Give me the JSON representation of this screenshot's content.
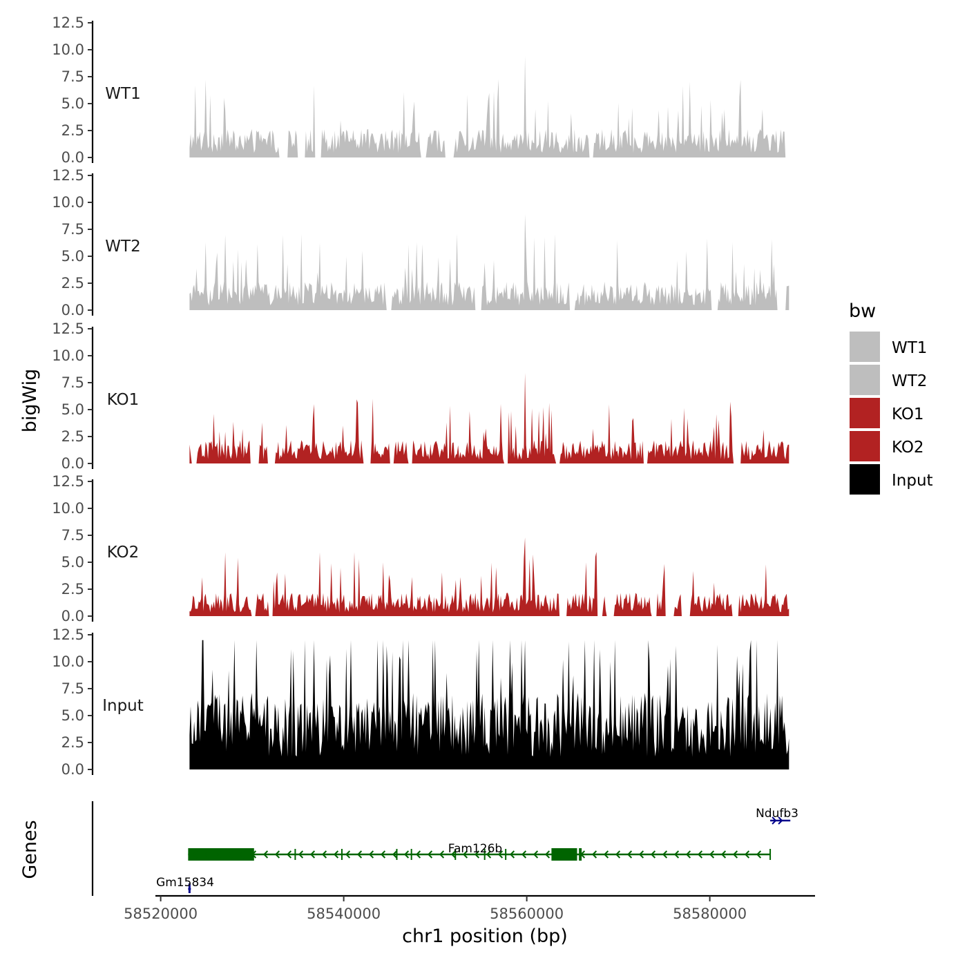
{
  "chart_data": {
    "type": "area",
    "ylabel": "bigWig",
    "xlabel": "chr1 position (bp)",
    "genes_label": "Genes",
    "ylim": [
      0,
      12.5
    ],
    "y_ticks": [
      "0.0",
      "2.5",
      "5.0",
      "7.5",
      "10.0",
      "12.5"
    ],
    "xlim": [
      58519500,
      58591500
    ],
    "x_ticks": [
      "58520000",
      "58540000",
      "58560000",
      "58580000"
    ],
    "data_range": [
      58523000,
      58588500
    ],
    "tracks": [
      {
        "name": "WT1",
        "color": "#bebebe",
        "peak_max": 9.4
      },
      {
        "name": "WT2",
        "color": "#bebebe",
        "peak_max": 8.9
      },
      {
        "name": "KO1",
        "color": "#b22222",
        "peak_max": 8.4
      },
      {
        "name": "KO2",
        "color": "#b22222",
        "peak_max": 7.3
      },
      {
        "name": "Input",
        "color": "#000000",
        "peak_max": 12.0
      }
    ],
    "legend": {
      "title": "bw",
      "position": "right",
      "entries": [
        {
          "label": "WT1",
          "color": "#bebebe"
        },
        {
          "label": "WT2",
          "color": "#bebebe"
        },
        {
          "label": "KO1",
          "color": "#b22222"
        },
        {
          "label": "KO2",
          "color": "#b22222"
        },
        {
          "label": "Input",
          "color": "#000000"
        }
      ]
    },
    "genes": [
      {
        "name": "Gm15834",
        "start": 58523000,
        "end": 58523300,
        "strand": "+",
        "color": "#00008b",
        "row": "bottom"
      },
      {
        "name": "Fam126b",
        "start": 58523000,
        "end": 58586600,
        "strand": "-",
        "color": "#006400",
        "row": "middle",
        "exons": [
          [
            58523000,
            58530200
          ],
          [
            58562700,
            58565500
          ],
          [
            58565700,
            58566000
          ]
        ]
      },
      {
        "name": "Ndufb3",
        "start": 58586600,
        "end": 58588800,
        "strand": "+",
        "color": "#00008b",
        "row": "top"
      }
    ]
  }
}
